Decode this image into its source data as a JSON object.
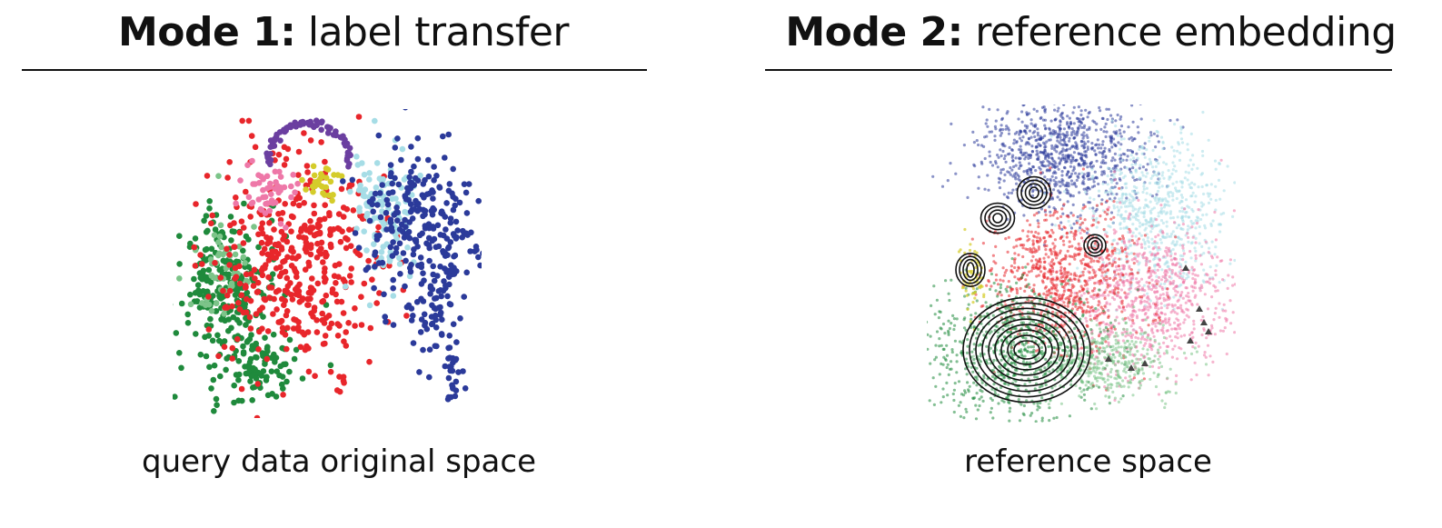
{
  "left_panel": {
    "title_strong": "Mode 1:",
    "title_light": " label transfer",
    "caption": "query data original space"
  },
  "right_panel": {
    "title_strong": "Mode 2:",
    "title_light": " reference embedding",
    "caption": "reference space"
  },
  "colors": {
    "green": "#1f8a3c",
    "light_green": "#7cc489",
    "red": "#e8262b",
    "pink": "#ee78a8",
    "blue": "#2b3a9a",
    "light_cyan": "#a6dde6",
    "yellow": "#d4cc2a",
    "purple": "#6b3fa0",
    "black": "#111111"
  }
}
